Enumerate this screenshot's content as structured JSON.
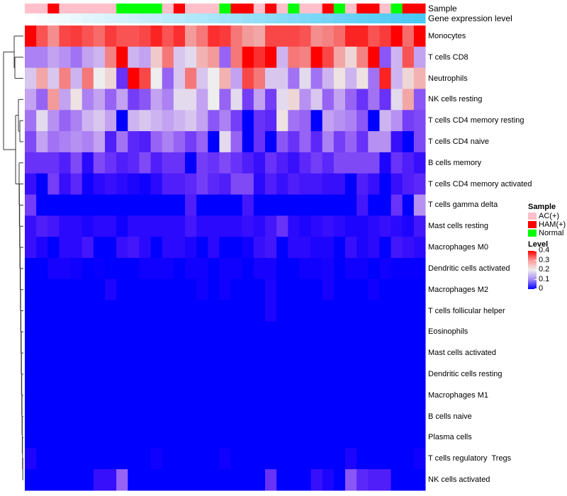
{
  "chart_data": {
    "type": "heatmap",
    "title": "",
    "annotation_labels": {
      "sample": "Sample",
      "gene_expression": "Gene expression level"
    },
    "rows": [
      "Monocytes",
      "T cells CD8",
      "Neutrophils",
      "NK cells resting",
      "T cells CD4 memory resting",
      "T cells CD4 naive",
      "B cells memory",
      "T cells CD4 memory activated",
      "T cells gamma delta",
      "Mast cells resting",
      "Macrophages M0",
      "Dendritic cells activated",
      "Macrophages M2",
      "T cells follicular helper",
      "Eosinophils",
      "Mast cells activated",
      "Dendritic cells resting",
      "Macrophages M1",
      "B cells naive",
      "Plasma cells",
      "T cells regulatory  Tregs",
      "NK cells activated"
    ],
    "column_samples": [
      "AC(+)",
      "AC(+)",
      "HAM(+)",
      "AC(+)",
      "AC(+)",
      "AC(+)",
      "AC(+)",
      "AC(+)",
      "Normal",
      "Normal",
      "Normal",
      "Normal",
      "AC(+)",
      "HAM(+)",
      "AC(+)",
      "AC(+)",
      "AC(+)",
      "Normal",
      "HAM(+)",
      "HAM(+)",
      "AC(+)",
      "HAM(+)",
      "AC(+)",
      "Normal",
      "AC(+)",
      "AC(+)",
      "HAM(+)",
      "Normal",
      "AC(+)",
      "HAM(+)",
      "HAM(+)",
      "AC(+)",
      "Normal",
      "HAM(+)",
      "HAM(+)"
    ],
    "values": [
      [
        0.4,
        0.33,
        0.28,
        0.34,
        0.35,
        0.33,
        0.31,
        0.35,
        0.33,
        0.33,
        0.34,
        0.37,
        0.33,
        0.36,
        0.27,
        0.3,
        0.36,
        0.35,
        0.3,
        0.27,
        0.26,
        0.34,
        0.34,
        0.34,
        0.33,
        0.28,
        0.29,
        0.31,
        0.37,
        0.37,
        0.33,
        0.35,
        0.4,
        0.31,
        0.4
      ],
      [
        0.14,
        0.14,
        0.16,
        0.15,
        0.13,
        0.16,
        0.17,
        0.29,
        0.4,
        0.17,
        0.16,
        0.23,
        0.3,
        0.18,
        0.19,
        0.25,
        0.27,
        0.12,
        0.3,
        0.4,
        0.36,
        0.4,
        0.17,
        0.3,
        0.29,
        0.4,
        0.34,
        0.26,
        0.22,
        0.29,
        0.4,
        0.11,
        0.17,
        0.33,
        0.16
      ],
      [
        0.18,
        0.26,
        0.18,
        0.29,
        0.17,
        0.3,
        0.2,
        0.22,
        0.08,
        0.4,
        0.34,
        0.2,
        0.12,
        0.18,
        0.3,
        0.18,
        0.2,
        0.25,
        0.16,
        0.34,
        0.3,
        0.18,
        0.18,
        0.13,
        0.19,
        0.13,
        0.17,
        0.21,
        0.17,
        0.21,
        0.13,
        0.37,
        0.17,
        0.22,
        0.25
      ],
      [
        0.16,
        0.12,
        0.27,
        0.16,
        0.21,
        0.14,
        0.16,
        0.12,
        0.16,
        0.09,
        0.11,
        0.16,
        0.14,
        0.19,
        0.19,
        0.16,
        0.2,
        0.12,
        0.19,
        0.09,
        0.16,
        0.09,
        0.19,
        0.22,
        0.15,
        0.18,
        0.12,
        0.16,
        0.12,
        0.08,
        0.13,
        0.08,
        0.19,
        0.26,
        0.11
      ],
      [
        0.13,
        0.19,
        0.15,
        0.12,
        0.14,
        0.17,
        0.18,
        0.16,
        0.0,
        0.17,
        0.18,
        0.17,
        0.16,
        0.17,
        0.18,
        0.16,
        0.11,
        0.14,
        0.09,
        0.0,
        0.08,
        0.07,
        0.21,
        0.13,
        0.12,
        0.0,
        0.16,
        0.15,
        0.14,
        0.11,
        0.0,
        0.17,
        0.15,
        0.09,
        0.1
      ],
      [
        0.1,
        0.16,
        0.13,
        0.14,
        0.15,
        0.14,
        0.16,
        0.06,
        0.13,
        0.07,
        0.06,
        0.12,
        0.14,
        0.12,
        0.09,
        0.12,
        0.0,
        0.19,
        0.12,
        0.0,
        0.08,
        0.0,
        0.11,
        0.08,
        0.12,
        0.07,
        0.14,
        0.09,
        0.12,
        0.08,
        0.15,
        0.15,
        0.04,
        0.0,
        0.1
      ],
      [
        0.08,
        0.08,
        0.08,
        0.06,
        0.1,
        0.03,
        0.1,
        0.08,
        0.06,
        0.07,
        0.1,
        0.06,
        0.08,
        0.08,
        0.0,
        0.09,
        0.08,
        0.1,
        0.08,
        0.06,
        0.04,
        0.08,
        0.06,
        0.04,
        0.07,
        0.09,
        0.07,
        0.1,
        0.1,
        0.1,
        0.1,
        0.02,
        0.08,
        0.06,
        0.04
      ],
      [
        0.04,
        0.0,
        0.09,
        0.04,
        0.07,
        0.01,
        0.03,
        0.04,
        0.03,
        0.02,
        0.01,
        0.03,
        0.06,
        0.06,
        0.07,
        0.09,
        0.07,
        0.06,
        0.1,
        0.1,
        0.03,
        0.06,
        0.04,
        0.06,
        0.05,
        0.05,
        0.04,
        0.04,
        0.0,
        0.06,
        0.04,
        0.0,
        0.04,
        0.06,
        0.07
      ],
      [
        0.09,
        0.0,
        0.0,
        0.0,
        0.0,
        0.0,
        0.0,
        0.0,
        0.0,
        0.0,
        0.0,
        0.0,
        0.0,
        0.0,
        0.06,
        0.0,
        0.0,
        0.0,
        0.0,
        0.05,
        0.0,
        0.0,
        0.0,
        0.0,
        0.0,
        0.0,
        0.0,
        0.0,
        0.0,
        0.05,
        0.0,
        0.0,
        0.08,
        0.0,
        0.15
      ],
      [
        0.04,
        0.06,
        0.05,
        0.03,
        0.03,
        0.02,
        0.03,
        0.03,
        0.01,
        0.03,
        0.03,
        0.03,
        0.03,
        0.03,
        0.05,
        0.03,
        0.03,
        0.03,
        0.03,
        0.04,
        0.03,
        0.05,
        0.08,
        0.03,
        0.02,
        0.03,
        0.04,
        0.03,
        0.02,
        0.02,
        0.03,
        0.04,
        0.03,
        0.02,
        0.05
      ],
      [
        0.04,
        0.02,
        0.0,
        0.03,
        0.03,
        0.05,
        0.0,
        0.0,
        0.04,
        0.05,
        0.03,
        0.0,
        0.03,
        0.03,
        0.02,
        0.0,
        0.03,
        0.0,
        0.0,
        0.01,
        0.04,
        0.05,
        0.0,
        0.03,
        0.03,
        0.02,
        0.02,
        0.0,
        0.04,
        0.02,
        0.03,
        0.0,
        0.05,
        0.04,
        0.03
      ],
      [
        0.0,
        0.0,
        0.015,
        0.015,
        0.01,
        0.0,
        0.005,
        0.0,
        0.0,
        0.0,
        0.01,
        0.01,
        0.01,
        0.0,
        0.01,
        0.01,
        0.0,
        0.01,
        0.01,
        0.0,
        0.015,
        0.015,
        0.0,
        0.0,
        0.01,
        0.01,
        0.015,
        0.0,
        0.01,
        0.01,
        0.0,
        0.01,
        0.005,
        0.005,
        0.005
      ],
      [
        0.0,
        0.0,
        0.0,
        0.0,
        0.0,
        0.0,
        0.0,
        0.02,
        0.0,
        0.0,
        0.0,
        0.0,
        0.0,
        0.0,
        0.0,
        0.01,
        0.0,
        0.01,
        0.0,
        0.0,
        0.0,
        0.02,
        0.0,
        0.0,
        0.0,
        0.0,
        0.015,
        0.0,
        0.0,
        0.0,
        0.01,
        0.0,
        0.0,
        0.0,
        0.0
      ],
      [
        0.0,
        0.0,
        0.0,
        0.0,
        0.0,
        0.0,
        0.0,
        0.0,
        0.0,
        0.0,
        0.0,
        0.0,
        0.0,
        0.0,
        0.0,
        0.0,
        0.0,
        0.0,
        0.0,
        0.0,
        0.0,
        0.02,
        0.0,
        0.0,
        0.0,
        0.0,
        0.0,
        0.0,
        0.0,
        0.0,
        0.0,
        0.0,
        0.0,
        0.0,
        0.0
      ],
      [
        0,
        0,
        0,
        0,
        0,
        0,
        0,
        0,
        0,
        0,
        0,
        0,
        0,
        0,
        0,
        0,
        0,
        0,
        0,
        0,
        0,
        0,
        0,
        0,
        0,
        0,
        0,
        0,
        0,
        0,
        0,
        0,
        0,
        0,
        0
      ],
      [
        0,
        0,
        0,
        0,
        0,
        0,
        0,
        0,
        0,
        0,
        0,
        0,
        0,
        0,
        0,
        0,
        0,
        0,
        0,
        0,
        0,
        0,
        0,
        0,
        0,
        0,
        0,
        0,
        0,
        0,
        0,
        0,
        0,
        0,
        0
      ],
      [
        0,
        0,
        0,
        0,
        0,
        0,
        0,
        0,
        0,
        0,
        0,
        0,
        0,
        0,
        0,
        0,
        0,
        0,
        0,
        0,
        0,
        0,
        0,
        0,
        0,
        0,
        0,
        0,
        0,
        0,
        0,
        0,
        0,
        0,
        0
      ],
      [
        0,
        0,
        0,
        0,
        0,
        0,
        0,
        0,
        0,
        0,
        0,
        0,
        0,
        0,
        0,
        0,
        0,
        0,
        0,
        0,
        0,
        0,
        0,
        0,
        0,
        0,
        0,
        0,
        0,
        0,
        0,
        0,
        0,
        0,
        0
      ],
      [
        0,
        0,
        0,
        0,
        0,
        0,
        0,
        0,
        0,
        0,
        0,
        0,
        0,
        0,
        0,
        0,
        0,
        0,
        0,
        0,
        0,
        0,
        0,
        0,
        0,
        0,
        0,
        0,
        0,
        0,
        0,
        0,
        0,
        0,
        0
      ],
      [
        0,
        0,
        0,
        0,
        0,
        0,
        0,
        0,
        0,
        0,
        0,
        0,
        0,
        0,
        0,
        0,
        0,
        0,
        0,
        0,
        0,
        0,
        0,
        0,
        0,
        0,
        0,
        0,
        0,
        0,
        0,
        0,
        0,
        0,
        0
      ],
      [
        0.02,
        0.0,
        0.0,
        0.0,
        0.0,
        0.0,
        0.0,
        0.0,
        0.0,
        0.0,
        0.0,
        0.01,
        0.0,
        0.0,
        0.0,
        0.0,
        0.0,
        0.01,
        0.0,
        0.0,
        0.0,
        0.0,
        0.0,
        0.0,
        0.0,
        0.0,
        0.0,
        0.0,
        0.02,
        0.0,
        0.0,
        0.0,
        0.0,
        0.0,
        0.01
      ],
      [
        0.0,
        0.0,
        0.0,
        0.0,
        0.0,
        0.0,
        0.04,
        0.04,
        0.12,
        0.0,
        0.0,
        0.0,
        0.0,
        0.0,
        0.0,
        0.0,
        0.0,
        0.0,
        0.0,
        0.0,
        0.0,
        0.08,
        0.0,
        0.0,
        0.0,
        0.04,
        0.02,
        0.0,
        0.11,
        0.07,
        0.06,
        0.06,
        0.0,
        0.0,
        0.0
      ]
    ],
    "color_range": [
      0,
      0.4
    ],
    "legend": {
      "sample_title": "Sample",
      "sample_items": [
        {
          "label": "AC(+)",
          "color": "#FFC0CB"
        },
        {
          "label": "HAM(+)",
          "color": "#FF0000"
        },
        {
          "label": "Normal",
          "color": "#00FF00"
        }
      ],
      "level_title": "Level",
      "level_ticks": [
        "0.4",
        "0.3",
        "0.2",
        "0.1",
        "0"
      ],
      "placement": "right"
    },
    "colors": {
      "low": "#0000FF",
      "mid": "#EEEEEE",
      "high": "#FF0000",
      "gene_low": "#FFFFFF",
      "gene_high": "#48C8F4"
    }
  }
}
